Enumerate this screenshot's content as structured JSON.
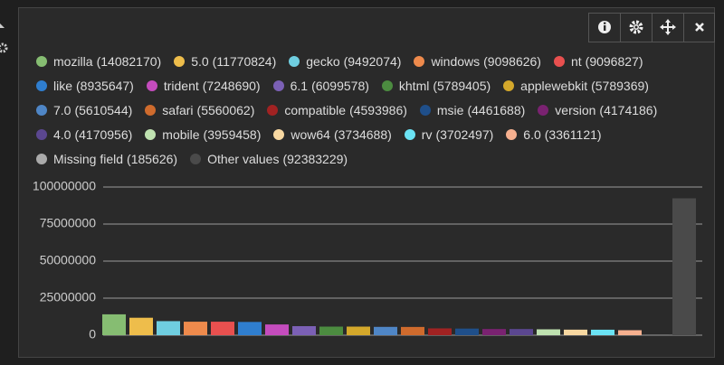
{
  "chart_data": {
    "type": "bar",
    "categories": [
      "mozilla",
      "5.0",
      "gecko",
      "windows",
      "nt",
      "like",
      "trident",
      "6.1",
      "khtml",
      "applewebkit",
      "7.0",
      "safari",
      "compatible",
      "msie",
      "version",
      "4.0",
      "mobile",
      "wow64",
      "rv",
      "6.0",
      "Missing field",
      "Other values"
    ],
    "values": [
      14082170,
      11770824,
      9492074,
      9098626,
      9096827,
      8935647,
      7248690,
      6099578,
      5789405,
      5789369,
      5610544,
      5560062,
      4593986,
      4461688,
      4174186,
      4170956,
      3959458,
      3734688,
      3702497,
      3361121,
      185626,
      92383229
    ],
    "value_labels": [
      "(14082170)",
      "(11770824)",
      "(9492074)",
      "(9098626)",
      "(9096827)",
      "(8935647)",
      "(7248690)",
      "(6099578)",
      "(5789405)",
      "(5789369)",
      "(5610544)",
      "(5560062)",
      "(4593986)",
      "(4461688)",
      "(4174186)",
      "(4170956)",
      "(3959458)",
      "(3734688)",
      "(3702497)",
      "(3361121)",
      "(185626)",
      "(92383229)"
    ],
    "colors": [
      "#86bd72",
      "#eebd4b",
      "#6fcee0",
      "#ee8a4c",
      "#e8504f",
      "#2f7ecf",
      "#c44cbd",
      "#7b60b5",
      "#4c8c40",
      "#d4a82b",
      "#4f86c6",
      "#cf6b2d",
      "#a12222",
      "#1f4f8a",
      "#7a2271",
      "#5b4790",
      "#bfe2b0",
      "#f8d8a1",
      "#6be3f4",
      "#f6b08f",
      "#aaaaaa",
      "#4a4a4a"
    ],
    "ylim": [
      0,
      100000000
    ],
    "yticks": [
      0,
      25000000,
      50000000,
      75000000,
      100000000
    ],
    "grid": true
  }
}
